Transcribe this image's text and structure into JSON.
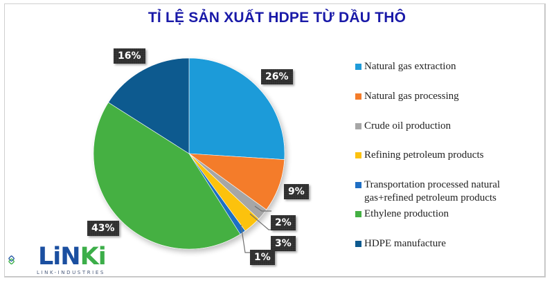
{
  "title": "TỈ LỆ SẢN XUẤT HDPE TỪ DẦU THÔ",
  "legend": [
    {
      "label": "Natural gas extraction",
      "color": "#1f9bd9"
    },
    {
      "label": "Natural gas processing",
      "color": "#f47c2a"
    },
    {
      "label": "Crude oil production",
      "color": "#a6a6a6"
    },
    {
      "label": "Refining petroleum products",
      "color": "#fcc20f"
    },
    {
      "label_line1": "Transportation processed natural",
      "label_line2": "gas+refined petroleum products",
      "color": "#1f6fc4"
    },
    {
      "label": "Ethylene production",
      "color": "#44b043"
    },
    {
      "label": "HDPE manufacture",
      "color": "#0d5a8f"
    }
  ],
  "data_labels": [
    "26%",
    "9%",
    "2%",
    "3%",
    "1%",
    "43%",
    "16%"
  ],
  "logo": {
    "word_part1": "LiN",
    "word_part2": "Ki",
    "subtitle": "LINK-INDUSTRIES",
    "blue": "#1b4fa0",
    "green": "#3cae49"
  },
  "chart_data": {
    "type": "pie",
    "title": "TỈ LỆ SẢN XUẤT HDPE TỪ DẦU THÔ",
    "categories": [
      "Natural gas extraction",
      "Natural gas processing",
      "Crude oil production",
      "Refining petroleum products",
      "Transportation processed natural gas+refined petroleum products",
      "Ethylene production",
      "HDPE manufacture"
    ],
    "values": [
      26,
      9,
      2,
      3,
      1,
      43,
      16
    ],
    "unit": "%",
    "colors": [
      "#1f9bd9",
      "#f47c2a",
      "#a6a6a6",
      "#fcc20f",
      "#1f6fc4",
      "#44b043",
      "#0d5a8f"
    ],
    "start_angle": "12 o'clock",
    "direction": "clockwise",
    "legend_position": "right",
    "data_labels": "dark boxes with white percentage text"
  }
}
